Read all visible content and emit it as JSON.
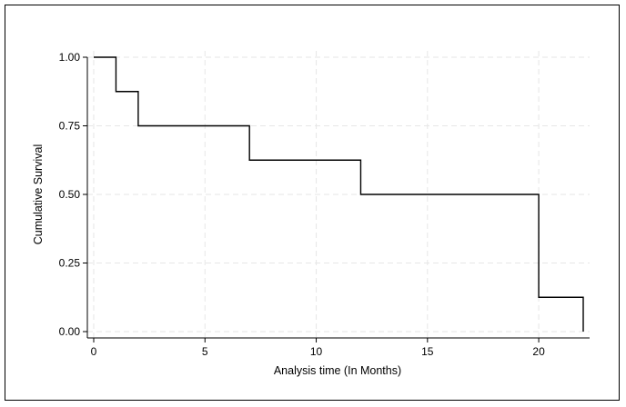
{
  "chart_data": {
    "type": "line",
    "subtype": "step",
    "title": "",
    "xlabel": "Analysis time (In Months)",
    "ylabel": "Cumulative Survival",
    "xlim": [
      0,
      22
    ],
    "ylim": [
      0,
      1
    ],
    "xticks": [
      0,
      5,
      10,
      15,
      20
    ],
    "yticks": [
      0.0,
      0.25,
      0.5,
      0.75,
      1.0
    ],
    "xtick_labels": [
      "0",
      "5",
      "10",
      "15",
      "20"
    ],
    "ytick_labels": [
      "0.00",
      "0.25",
      "0.50",
      "0.75",
      "1.00"
    ],
    "grid": true,
    "legend": "none",
    "series": [
      {
        "x": [
          0,
          1,
          2,
          7,
          12,
          20,
          22
        ],
        "y": [
          1.0,
          0.875,
          0.75,
          0.625,
          0.5,
          0.125,
          0.0
        ]
      }
    ],
    "colors": {
      "line": "#000000",
      "grid": "#e6e6e6",
      "axis": "#000000"
    }
  }
}
